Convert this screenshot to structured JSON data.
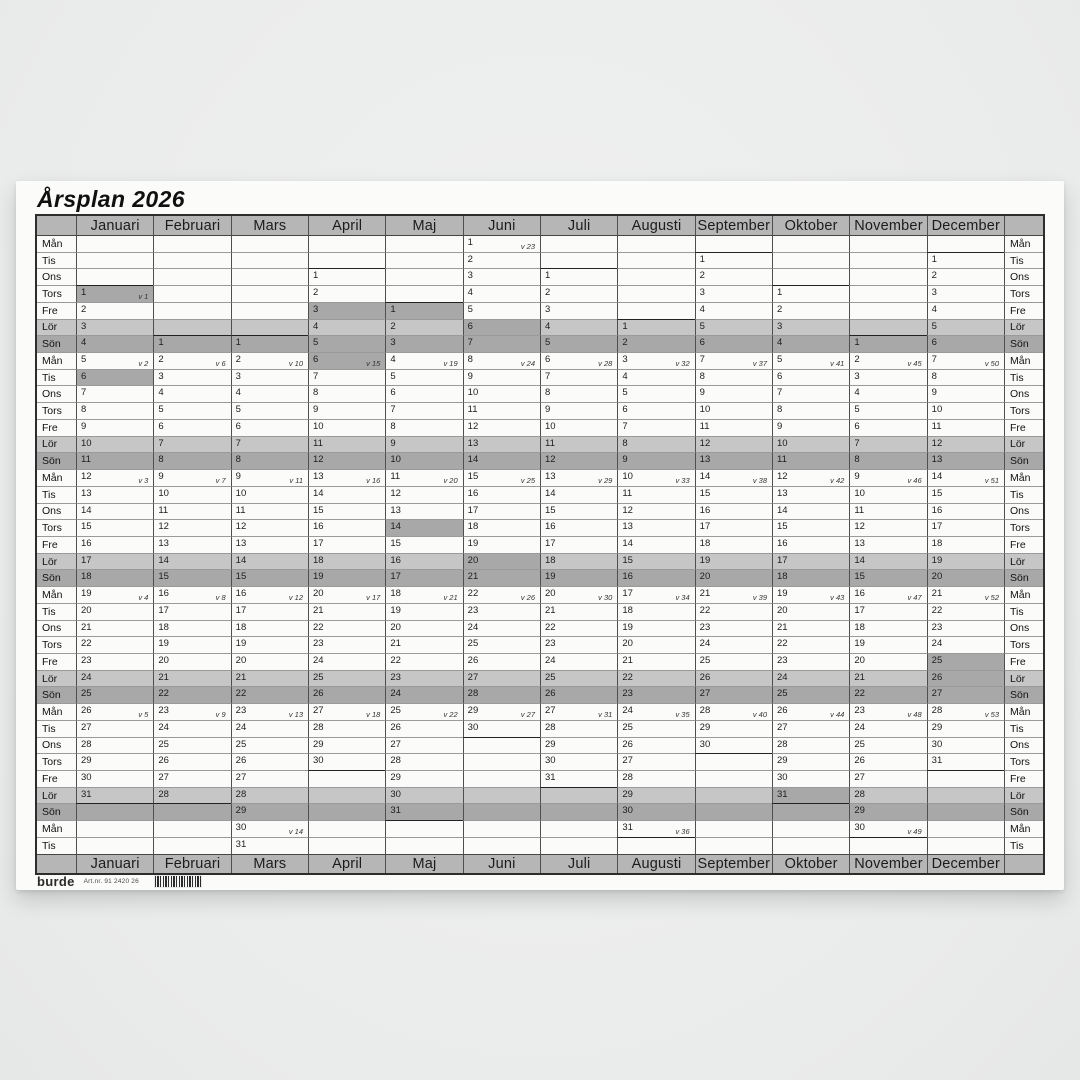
{
  "title": "Årsplan 2026",
  "weekdays": [
    "Mån",
    "Tis",
    "Ons",
    "Tors",
    "Fre",
    "Lör",
    "Sön"
  ],
  "grid_rows": 37,
  "week_prefix": "v",
  "colors": {
    "header_band": "#b5b6b5",
    "saturday_row": "#c5c6c5",
    "sunday_row": "#a7a8a7",
    "holiday_cell": "#a7a8a7",
    "paper": "#fbfbfa",
    "grid_line_horizontal": "#9a9a9a",
    "grid_line_vertical": "#4f4f4f",
    "month_boundary_line": "#222222"
  },
  "months": [
    {
      "label": "Januari",
      "first_row": 3,
      "days": 31,
      "week_labels": {
        "1": "v 1",
        "5": "v 2",
        "12": "v 3",
        "19": "v 4",
        "26": "v 5"
      },
      "holidays": [
        1,
        6
      ]
    },
    {
      "label": "Februari",
      "first_row": 6,
      "days": 28,
      "week_labels": {
        "2": "v 6",
        "9": "v 7",
        "16": "v 8",
        "23": "v 9"
      },
      "holidays": []
    },
    {
      "label": "Mars",
      "first_row": 6,
      "days": 31,
      "week_labels": {
        "2": "v 10",
        "9": "v 11",
        "16": "v 12",
        "23": "v 13",
        "30": "v 14"
      },
      "holidays": []
    },
    {
      "label": "April",
      "first_row": 2,
      "days": 30,
      "week_labels": {
        "6": "v 15",
        "13": "v 16",
        "20": "v 17",
        "27": "v 18"
      },
      "holidays": [
        3,
        6
      ]
    },
    {
      "label": "Maj",
      "first_row": 4,
      "days": 31,
      "week_labels": {
        "4": "v 19",
        "11": "v 20",
        "18": "v 21",
        "25": "v 22"
      },
      "holidays": [
        1,
        14
      ]
    },
    {
      "label": "Juni",
      "first_row": 0,
      "days": 30,
      "week_labels": {
        "1": "v 23",
        "8": "v 24",
        "15": "v 25",
        "22": "v 26",
        "29": "v 27"
      },
      "holidays": [
        6,
        20
      ]
    },
    {
      "label": "Juli",
      "first_row": 2,
      "days": 31,
      "week_labels": {
        "6": "v 28",
        "13": "v 29",
        "20": "v 30",
        "27": "v 31"
      },
      "holidays": []
    },
    {
      "label": "Augusti",
      "first_row": 5,
      "days": 31,
      "week_labels": {
        "3": "v 32",
        "10": "v 33",
        "17": "v 34",
        "24": "v 35",
        "31": "v 36"
      },
      "holidays": []
    },
    {
      "label": "September",
      "first_row": 1,
      "days": 30,
      "week_labels": {
        "7": "v 37",
        "14": "v 38",
        "21": "v 39",
        "28": "v 40"
      },
      "holidays": []
    },
    {
      "label": "Oktober",
      "first_row": 3,
      "days": 31,
      "week_labels": {
        "5": "v 41",
        "12": "v 42",
        "19": "v 43",
        "26": "v 44"
      },
      "holidays": [
        31
      ]
    },
    {
      "label": "November",
      "first_row": 6,
      "days": 30,
      "week_labels": {
        "2": "v 45",
        "9": "v 46",
        "16": "v 47",
        "23": "v 48",
        "30": "v 49"
      },
      "holidays": []
    },
    {
      "label": "December",
      "first_row": 1,
      "days": 31,
      "week_labels": {
        "7": "v 50",
        "14": "v 51",
        "21": "v 52",
        "28": "v 53"
      },
      "holidays": [
        25,
        26
      ]
    }
  ],
  "footer": {
    "logo": "burde",
    "artnr": "Art.nr. 91 2420 26"
  }
}
